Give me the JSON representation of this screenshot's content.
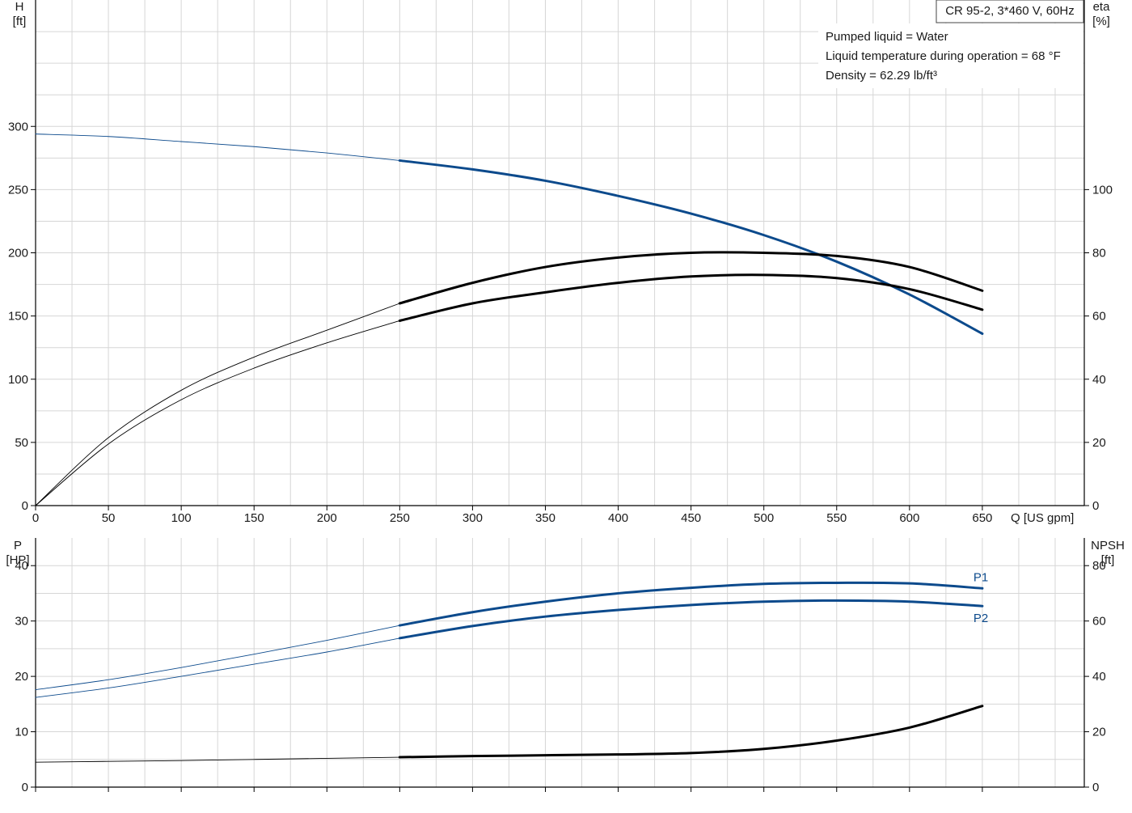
{
  "chart_data": [
    {
      "type": "line",
      "panel": "top",
      "title": "CR 95-2, 3*460 V, 60Hz",
      "info": [
        "Pumped liquid = Water",
        "Liquid temperature during operation = 68 °F",
        "Density = 62.29 lb/ft³"
      ],
      "xlabel": "Q [US gpm]",
      "xlim": [
        0,
        720
      ],
      "xticks": [
        0,
        50,
        100,
        150,
        200,
        250,
        300,
        350,
        400,
        450,
        500,
        550,
        600,
        650
      ],
      "ylabel_left": [
        "H",
        "[ft]"
      ],
      "ylim_left": [
        0,
        400
      ],
      "yticks_left": [
        0,
        50,
        100,
        150,
        200,
        250,
        300
      ],
      "ylabel_right": [
        "eta",
        "[%]"
      ],
      "ylim_right": [
        0,
        160
      ],
      "yticks_right": [
        0,
        20,
        40,
        60,
        80,
        100
      ],
      "operating_range": [
        250,
        650
      ],
      "series": [
        {
          "axis": "left",
          "color": "#0c4a8c",
          "x": [
            0,
            50,
            100,
            150,
            200,
            250,
            300,
            350,
            400,
            450,
            500,
            550,
            600,
            650
          ],
          "y": [
            294,
            292,
            288,
            284,
            279,
            273,
            266,
            257,
            245,
            231,
            214,
            193,
            167,
            136
          ]
        },
        {
          "axis": "right",
          "color": "#000000",
          "x": [
            0,
            50,
            100,
            150,
            200,
            250,
            300,
            350,
            400,
            450,
            500,
            550,
            600,
            650
          ],
          "y": [
            0,
            21.5,
            36.5,
            47,
            55.5,
            64,
            70.5,
            75.5,
            78.5,
            80,
            80,
            79,
            75.5,
            68
          ]
        },
        {
          "axis": "right",
          "color": "#000000",
          "x": [
            0,
            50,
            100,
            150,
            200,
            250,
            300,
            350,
            400,
            450,
            500,
            550,
            600,
            650
          ],
          "y": [
            0,
            19.5,
            33.5,
            43.5,
            51.5,
            58.5,
            64,
            67.5,
            70.5,
            72.5,
            73,
            72,
            68.5,
            62
          ]
        }
      ]
    },
    {
      "type": "line",
      "panel": "bottom",
      "xlim": [
        0,
        720
      ],
      "xticks": [
        0,
        50,
        100,
        150,
        200,
        250,
        300,
        350,
        400,
        450,
        500,
        550,
        600,
        650
      ],
      "ylabel_left": [
        "P",
        "[HP]"
      ],
      "ylim_left": [
        0,
        45
      ],
      "yticks_left": [
        0,
        10,
        20,
        30,
        40
      ],
      "ylabel_right": [
        "NPSH",
        "[ft]"
      ],
      "ylim_right": [
        0,
        90
      ],
      "yticks_right": [
        0,
        20,
        40,
        60,
        80
      ],
      "operating_range": [
        250,
        650
      ],
      "series": [
        {
          "name": "P1",
          "axis": "left",
          "color": "#0c4a8c",
          "x": [
            0,
            50,
            100,
            150,
            200,
            250,
            300,
            350,
            400,
            450,
            500,
            550,
            600,
            650
          ],
          "y": [
            17.6,
            19.4,
            21.6,
            24,
            26.5,
            29.2,
            31.6,
            33.5,
            35,
            36,
            36.7,
            36.9,
            36.8,
            35.9
          ]
        },
        {
          "name": "P2",
          "axis": "left",
          "color": "#0c4a8c",
          "x": [
            0,
            50,
            100,
            150,
            200,
            250,
            300,
            350,
            400,
            450,
            500,
            550,
            600,
            650
          ],
          "y": [
            16.2,
            17.9,
            20,
            22.2,
            24.4,
            26.9,
            29.1,
            30.8,
            32,
            32.9,
            33.5,
            33.7,
            33.5,
            32.7
          ]
        },
        {
          "axis": "right",
          "color": "#000000",
          "x": [
            0,
            50,
            100,
            150,
            200,
            250,
            300,
            350,
            400,
            450,
            500,
            550,
            600,
            650
          ],
          "y": [
            9,
            9.3,
            9.6,
            10,
            10.4,
            10.8,
            11.2,
            11.5,
            11.8,
            12.3,
            13.8,
            16.8,
            21.5,
            29.3
          ]
        }
      ]
    }
  ]
}
